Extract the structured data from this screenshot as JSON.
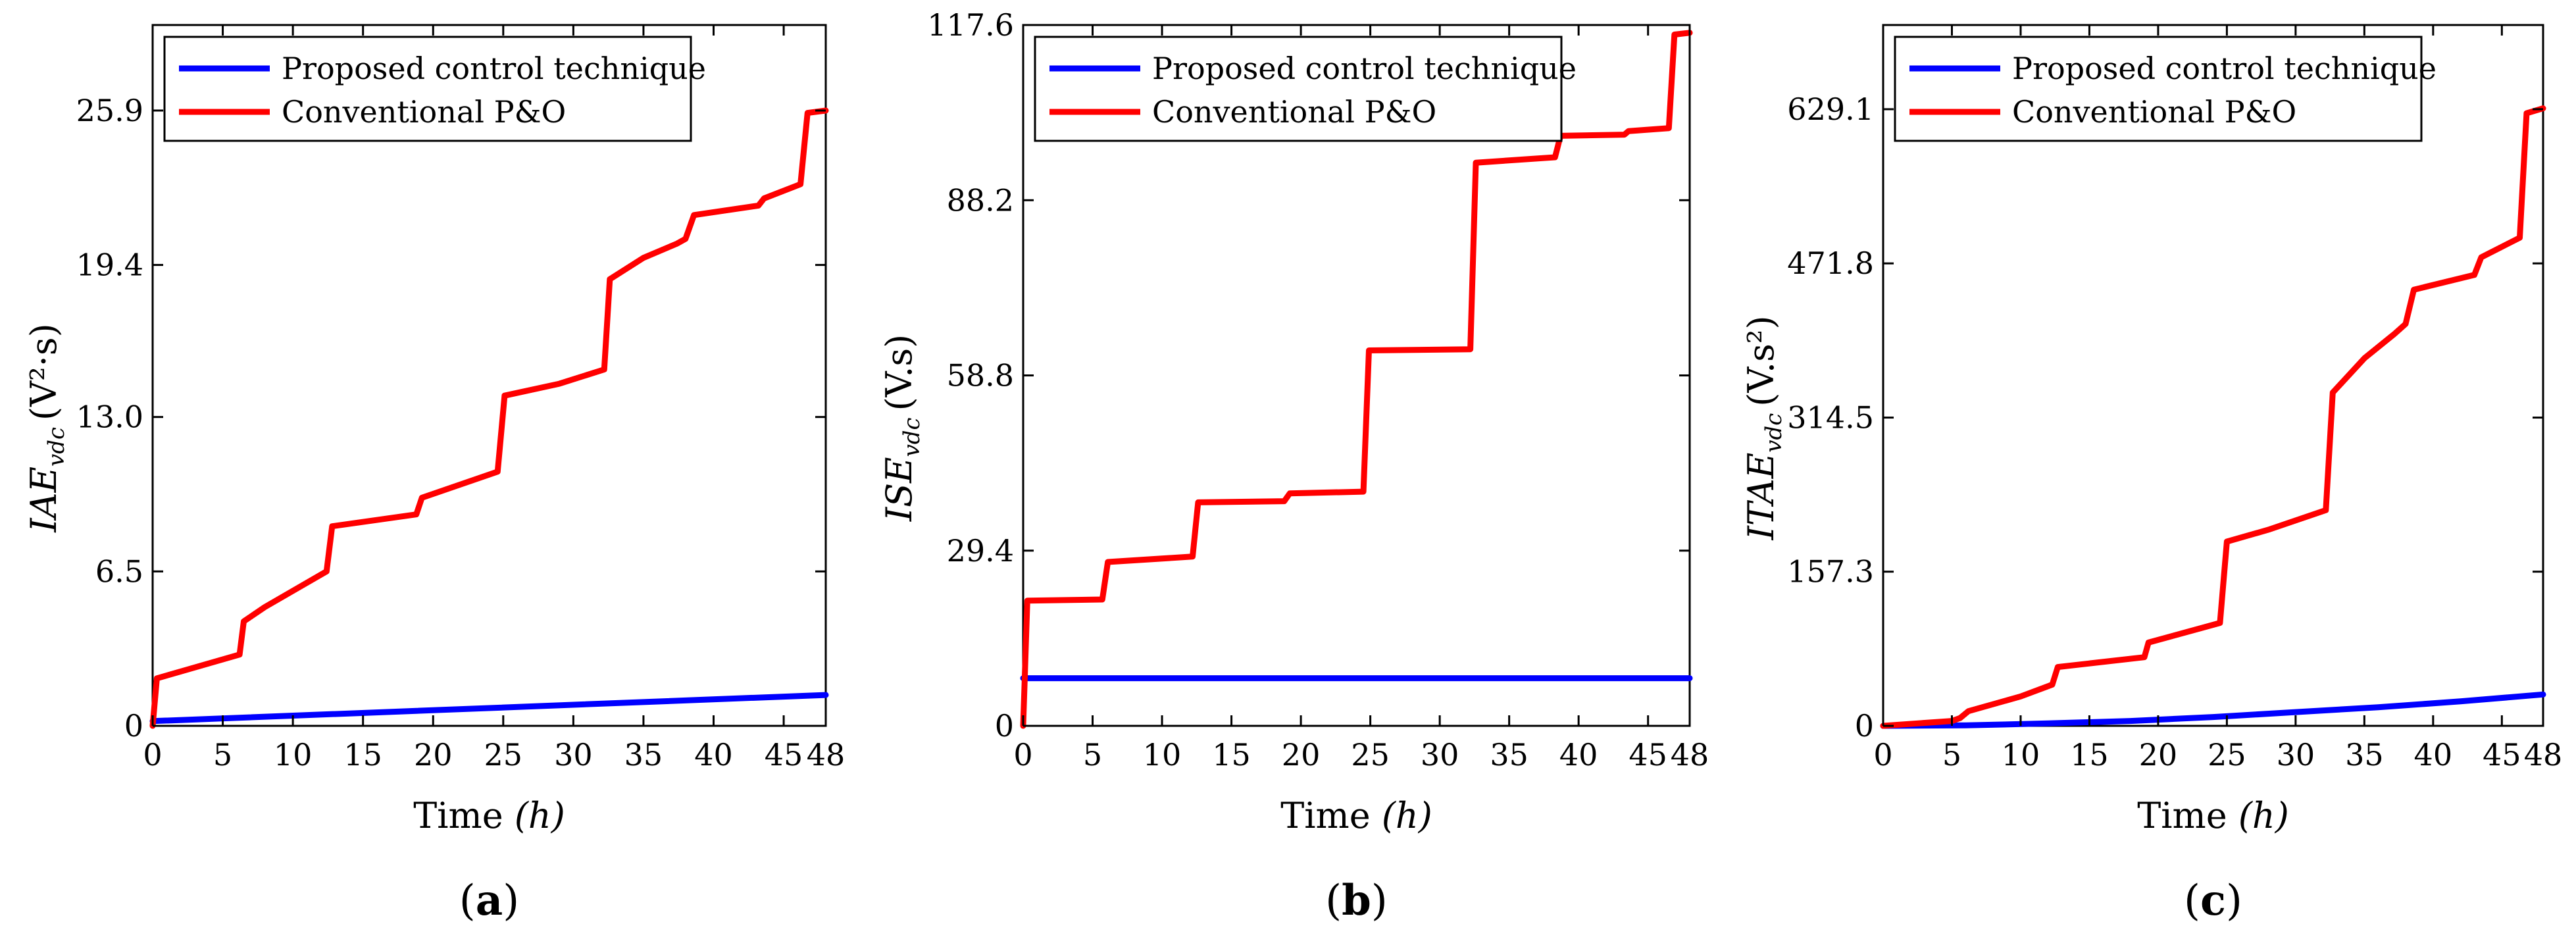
{
  "colors": {
    "proposed": "#0000ff",
    "conventional": "#ff0000",
    "axis": "#000000"
  },
  "legend": {
    "proposed": "Proposed control technique",
    "conventional": "Conventional P&O"
  },
  "chart_data": [
    {
      "type": "line",
      "panel_label": {
        "open": "(",
        "letter": "a",
        "close": ")"
      },
      "xlabel": {
        "main": "Time ",
        "unit": "(h)"
      },
      "ylabel": {
        "main": "IAE",
        "sub": "vdc",
        "unit": "(V²·s)"
      },
      "xlim": [
        0,
        48
      ],
      "ylim": [
        0,
        29.5
      ],
      "xticks": [
        0,
        5,
        10,
        15,
        20,
        25,
        30,
        35,
        40,
        45,
        48
      ],
      "yticks": [
        0,
        6.5,
        13.0,
        19.4,
        25.9
      ],
      "ytick_labels": [
        "0",
        "6.5",
        "13.0",
        "19.4",
        "25.9"
      ],
      "series": [
        {
          "name": "Proposed control technique",
          "color_key": "proposed",
          "x": [
            0,
            48
          ],
          "y": [
            0.2,
            1.3
          ]
        },
        {
          "name": "Conventional P&O",
          "color_key": "conventional",
          "x": [
            0,
            0.3,
            6.2,
            6.5,
            8,
            12.4,
            12.8,
            18.8,
            19.2,
            24.6,
            25.1,
            29,
            32.2,
            32.6,
            35,
            37.4,
            38,
            38.6,
            43.2,
            43.6,
            46.2,
            46.7,
            48
          ],
          "y": [
            0,
            2.0,
            3.0,
            4.4,
            5.0,
            6.5,
            8.4,
            8.9,
            9.6,
            10.7,
            13.9,
            14.4,
            15.0,
            18.8,
            19.7,
            20.3,
            20.5,
            21.5,
            21.9,
            22.2,
            22.8,
            25.8,
            25.9
          ]
        }
      ]
    },
    {
      "type": "line",
      "panel_label": {
        "open": "(",
        "letter": "b",
        "close": ")"
      },
      "xlabel": {
        "main": "Time ",
        "unit": "(h)"
      },
      "ylabel": {
        "main": "ISE",
        "sub": "vdc",
        "unit": "(V.s)"
      },
      "xlim": [
        0,
        48
      ],
      "ylim": [
        0,
        117.6
      ],
      "xticks": [
        0,
        5,
        10,
        15,
        20,
        25,
        30,
        35,
        40,
        45,
        48
      ],
      "yticks": [
        0,
        29.4,
        58.8,
        88.2,
        117.6
      ],
      "ytick_labels": [
        "0",
        "29.4",
        "58.8",
        "88.2",
        "117.6"
      ],
      "series": [
        {
          "name": "Proposed control technique",
          "color_key": "proposed",
          "x": [
            0,
            48
          ],
          "y": [
            8.0,
            8.0
          ]
        },
        {
          "name": "Conventional P&O",
          "color_key": "conventional",
          "x": [
            0,
            0.3,
            5.7,
            6.1,
            12.2,
            12.6,
            18.8,
            19.2,
            24.5,
            24.9,
            32.2,
            32.6,
            38.3,
            38.7,
            43.3,
            43.6,
            46.5,
            46.9,
            48
          ],
          "y": [
            0,
            21.0,
            21.2,
            27.5,
            28.4,
            37.5,
            37.7,
            39.0,
            39.3,
            63.0,
            63.2,
            94.5,
            95.4,
            99.0,
            99.2,
            99.8,
            100.3,
            116.0,
            116.3
          ]
        }
      ]
    },
    {
      "type": "line",
      "panel_label": {
        "open": "(",
        "letter": "c",
        "close": ")"
      },
      "xlabel": {
        "main": "Time ",
        "unit": "(h)"
      },
      "ylabel": {
        "main": "ITAE",
        "sub": "vdc",
        "unit": "(V.s²)"
      },
      "xlim": [
        0,
        48
      ],
      "ylim": [
        0,
        715
      ],
      "xticks": [
        0,
        5,
        10,
        15,
        20,
        25,
        30,
        35,
        40,
        45,
        48
      ],
      "yticks": [
        0,
        157.3,
        314.5,
        471.8,
        629.1
      ],
      "ytick_labels": [
        "0",
        "157.3",
        "314.5",
        "471.8",
        "629.1"
      ],
      "series": [
        {
          "name": "Proposed control technique",
          "color_key": "proposed",
          "x": [
            0,
            6,
            12,
            18,
            24,
            30,
            36,
            42,
            48
          ],
          "y": [
            0,
            0.5,
            2.5,
            5,
            9,
            14,
            19,
            25,
            32
          ]
        },
        {
          "name": "Conventional P&O",
          "color_key": "conventional",
          "x": [
            0,
            5,
            5.6,
            6.2,
            10,
            12.3,
            12.7,
            19,
            19.3,
            24.5,
            25,
            28,
            32.2,
            32.7,
            35,
            37.2,
            38,
            38.6,
            43,
            43.5,
            46.3,
            46.8,
            48
          ],
          "y": [
            0,
            5,
            8,
            15,
            30,
            42,
            60,
            70,
            85,
            105,
            188,
            200,
            220,
            340,
            375,
            400,
            410,
            445,
            460,
            478,
            498,
            625,
            630
          ]
        }
      ]
    }
  ]
}
